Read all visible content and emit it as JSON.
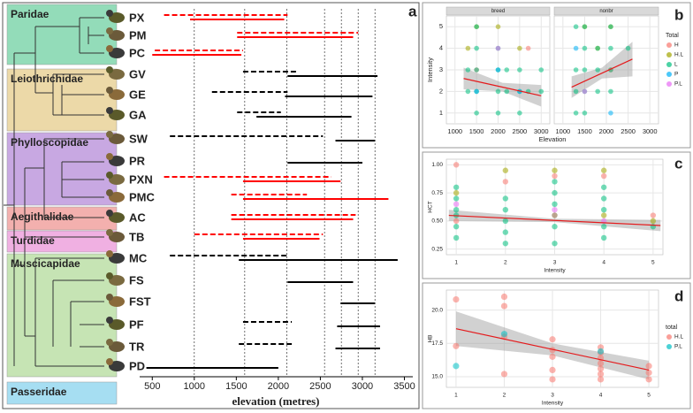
{
  "chart_data": [
    {
      "type": "range",
      "panel_label": "a",
      "xlabel": "elevation (metres)",
      "xlim": [
        350,
        3600
      ],
      "xticks": [
        500,
        1000,
        1500,
        2000,
        2500,
        3000,
        3500
      ],
      "reference_lines": [
        1000,
        1600,
        2100,
        2550,
        2750,
        2950,
        3150
      ],
      "families": [
        {
          "name": "Paridae",
          "color": "#93dcb9"
        },
        {
          "name": "Leiothrichidae",
          "color": "#ecd9a8"
        },
        {
          "name": "Phylloscopidae",
          "color": "#c8a8e2"
        },
        {
          "name": "Aegithalidae",
          "color": "#f3b0ae"
        },
        {
          "name": "Turdidae",
          "color": "#f0b0e2"
        },
        {
          "name": "Muscicapidae",
          "color": "#c6e4b4"
        },
        {
          "name": "Passeridae",
          "color": "#a6def2"
        }
      ],
      "species": [
        {
          "code": "PX",
          "color": "#ff0000",
          "dashed": [
            640,
            2110
          ],
          "solid": [
            950,
            2070
          ]
        },
        {
          "code": "PM",
          "color": "#ff0000",
          "dashed": [
            1510,
            2950
          ],
          "solid": [
            1510,
            2890
          ]
        },
        {
          "code": "PC",
          "color": "#ff0000",
          "dashed": [
            530,
            1580
          ],
          "solid": [
            500,
            1560
          ]
        },
        {
          "code": "GV",
          "color": "#000000",
          "dashed": [
            1580,
            2210
          ],
          "solid": [
            2110,
            3180
          ]
        },
        {
          "code": "GE",
          "color": "#000000",
          "dashed": [
            1210,
            2110
          ],
          "solid": [
            2080,
            3120
          ]
        },
        {
          "code": "GA",
          "color": "#000000",
          "dashed": [
            1510,
            2030
          ],
          "solid": [
            1740,
            2870
          ]
        },
        {
          "code": "SW",
          "color": "#000000",
          "dashed": [
            710,
            2530
          ],
          "solid": [
            2680,
            3150
          ]
        },
        {
          "code": "PR",
          "color": "#000000",
          "dashed": null,
          "solid": [
            2110,
            3000
          ]
        },
        {
          "code": "PXN",
          "color": "#ff0000",
          "dashed": [
            640,
            2630
          ],
          "solid": [
            1580,
            2740
          ]
        },
        {
          "code": "PMC",
          "color": "#ff0000",
          "dashed": [
            1440,
            2340
          ],
          "solid": [
            1580,
            3310
          ]
        },
        {
          "code": "AC",
          "color": "#ff0000",
          "dashed": [
            1440,
            2920
          ],
          "solid": [
            1440,
            2890
          ]
        },
        {
          "code": "TB",
          "color": "#ff0000",
          "dashed": [
            1000,
            2530
          ],
          "solid": [
            1580,
            2490
          ]
        },
        {
          "code": "MC",
          "color": "#000000",
          "dashed": [
            710,
            2110
          ],
          "solid": [
            1530,
            3420
          ]
        },
        {
          "code": "FS",
          "color": "#000000",
          "dashed": null,
          "solid": [
            2110,
            2890
          ]
        },
        {
          "code": "FST",
          "color": "#000000",
          "dashed": null,
          "solid": [
            2740,
            3150
          ]
        },
        {
          "code": "PF",
          "color": "#000000",
          "dashed": [
            1580,
            2160
          ],
          "solid": [
            2700,
            3210
          ]
        },
        {
          "code": "TR",
          "color": "#000000",
          "dashed": [
            1530,
            2160
          ],
          "solid": [
            2680,
            3210
          ]
        },
        {
          "code": "PD",
          "color": "#000000",
          "dashed": null,
          "solid": [
            430,
            2000
          ]
        }
      ]
    },
    {
      "type": "scatter",
      "panel_label": "b",
      "facets": [
        "breed",
        "nonbr"
      ],
      "xlabel": "Elevation",
      "ylabel": "Intensity",
      "xlim": [
        800,
        3200
      ],
      "xticks": [
        1000,
        1500,
        2000,
        2500,
        3000
      ],
      "ylim": [
        0.5,
        5.5
      ],
      "yticks": [
        1,
        2,
        3,
        4,
        5
      ],
      "grid": true,
      "legend_title": "Total",
      "legend": "right",
      "series": [
        {
          "name": "H",
          "color": "#f8766d",
          "facets": [
            {
              "x": [
                2700,
                1500
              ],
              "y": [
                4,
                3
              ]
            },
            {
              "x": [
                2100
              ],
              "y": [
                3
              ]
            }
          ]
        },
        {
          "name": "H.L",
          "color": "#a3a500",
          "facets": [
            {
              "x": [
                1500,
                2000,
                2500,
                1300
              ],
              "y": [
                5,
                5,
                4,
                4
              ]
            },
            {
              "x": [
                1500,
                2100,
                1800
              ],
              "y": [
                5,
                5,
                4
              ]
            }
          ]
        },
        {
          "name": "L",
          "color": "#00bf7d",
          "facets": [
            {
              "x": [
                1500,
                1500,
                1500,
                1500,
                1500,
                2000,
                2000,
                2000,
                2000,
                2200,
                2200,
                2500,
                2500,
                2500,
                2700,
                3000,
                3000,
                1300,
                1300
              ],
              "y": [
                1,
                2,
                3,
                4,
                5,
                1,
                2,
                3,
                4,
                2,
                3,
                1,
                2,
                3,
                2,
                2,
                3,
                2,
                3
              ]
            },
            {
              "x": [
                1300,
                1300,
                1300,
                1500,
                1500,
                1500,
                1500,
                1800,
                1800,
                1800,
                2100,
                2100,
                2100,
                2100,
                2500,
                1300,
                1500
              ],
              "y": [
                1,
                2,
                3,
                1,
                2,
                3,
                4,
                2,
                3,
                4,
                2,
                3,
                4,
                5,
                4,
                5,
                5
              ]
            }
          ]
        },
        {
          "name": "P",
          "color": "#00b0f6",
          "facets": [
            {
              "x": [
                2000,
                1500,
                2500
              ],
              "y": [
                3,
                2,
                2
              ]
            },
            {
              "x": [
                1300,
                2100
              ],
              "y": [
                4,
                1
              ]
            }
          ]
        },
        {
          "name": "P.L",
          "color": "#e76bf3",
          "facets": [
            {
              "x": [
                2000
              ],
              "y": [
                4
              ]
            },
            {
              "x": [
                1500
              ],
              "y": [
                2
              ]
            }
          ]
        }
      ],
      "trend": [
        {
          "x": [
            1200,
            2100,
            3000
          ],
          "y": [
            2.6,
            2.2,
            1.8
          ],
          "lower": [
            2.1,
            2.0,
            1.3
          ],
          "upper": [
            3.1,
            2.4,
            2.3
          ]
        },
        {
          "x": [
            1200,
            1900,
            2600
          ],
          "y": [
            2.2,
            2.85,
            3.5
          ],
          "lower": [
            1.7,
            2.6,
            2.7
          ],
          "upper": [
            2.7,
            3.1,
            4.3
          ]
        }
      ]
    },
    {
      "type": "scatter",
      "panel_label": "c",
      "xlabel": "Intensity",
      "ylabel": "HCT",
      "xlim": [
        0.8,
        5.2
      ],
      "xticks": [
        1,
        2,
        3,
        4,
        5
      ],
      "ylim": [
        0.2,
        1.05
      ],
      "yticks": [
        0.25,
        {
          "value": 0.5,
          "label": "0.50"
        },
        0.75,
        {
          "value": 1,
          "label": "1.00"
        }
      ],
      "grid": true,
      "series": [
        {
          "color": "#00bf7d",
          "x": [
            1,
            1,
            1,
            1,
            1,
            1,
            2,
            2,
            2,
            2,
            2,
            3,
            3,
            3,
            3,
            3,
            3,
            4,
            4,
            4,
            4,
            4,
            5
          ],
          "y": [
            0.35,
            0.45,
            0.55,
            0.6,
            0.7,
            0.8,
            0.3,
            0.4,
            0.5,
            0.6,
            0.7,
            0.3,
            0.45,
            0.55,
            0.65,
            0.75,
            0.85,
            0.35,
            0.45,
            0.6,
            0.7,
            0.8,
            0.45
          ]
        },
        {
          "color": "#f8766d",
          "x": [
            1,
            1,
            2,
            3,
            3,
            4,
            5
          ],
          "y": [
            1.0,
            0.5,
            0.85,
            0.9,
            0.55,
            0.9,
            0.55
          ]
        },
        {
          "color": "#a3a500",
          "x": [
            1,
            2,
            3,
            4,
            4,
            5
          ],
          "y": [
            0.75,
            0.95,
            0.95,
            0.95,
            0.55,
            0.5
          ]
        },
        {
          "color": "#e76bf3",
          "x": [
            1,
            3,
            4
          ],
          "y": [
            0.65,
            0.6,
            0.5
          ]
        }
      ],
      "trend": {
        "x": [
          0.85,
          3,
          5.15
        ],
        "y": [
          0.55,
          0.505,
          0.46
        ],
        "lower": [
          0.5,
          0.49,
          0.41
        ],
        "upper": [
          0.6,
          0.52,
          0.51
        ]
      }
    },
    {
      "type": "scatter",
      "panel_label": "d",
      "xlabel": "Intensity",
      "ylabel": "HB",
      "xlim": [
        0.8,
        5.2
      ],
      "xticks": [
        1,
        2,
        3,
        4,
        5
      ],
      "ylim": [
        14.2,
        21.5
      ],
      "yticks": [
        {
          "value": 15,
          "label": "15.0"
        },
        17.5,
        {
          "value": 20,
          "label": "20.0"
        }
      ],
      "grid": true,
      "legend_title": "total",
      "legend": "right",
      "series": [
        {
          "name": "H.L",
          "color": "#f8766d",
          "x": [
            1,
            1,
            2,
            2,
            2,
            2,
            3,
            3,
            3,
            3,
            3,
            4,
            4,
            4,
            4,
            4,
            4,
            4,
            5,
            5,
            5
          ],
          "y": [
            20.8,
            17.3,
            21.0,
            20.3,
            18.0,
            15.2,
            17.8,
            17.0,
            16.5,
            15.5,
            14.8,
            17.2,
            16.8,
            16.4,
            16.0,
            15.6,
            15.2,
            14.8,
            15.8,
            15.3,
            14.8
          ]
        },
        {
          "name": "P.L",
          "color": "#00bfc4",
          "x": [
            1,
            2,
            4
          ],
          "y": [
            15.8,
            18.2,
            16.9
          ]
        }
      ],
      "trend": {
        "x": [
          1,
          3,
          5
        ],
        "y": [
          18.6,
          17.05,
          15.5
        ],
        "lower": [
          17.3,
          16.6,
          14.8
        ],
        "upper": [
          19.9,
          17.5,
          16.2
        ]
      }
    }
  ]
}
